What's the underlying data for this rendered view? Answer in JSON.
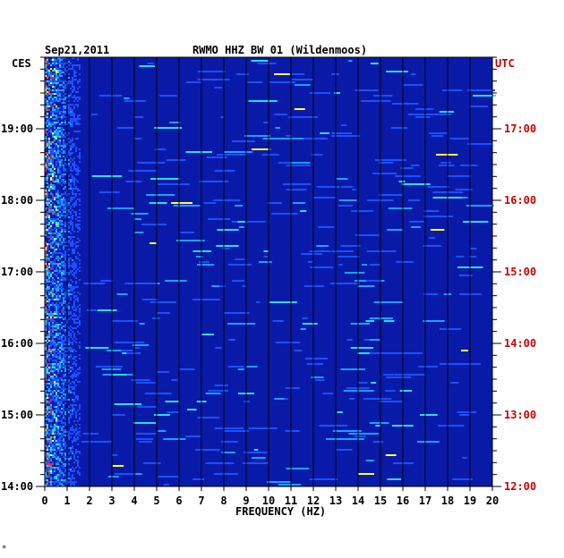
{
  "header": {
    "date": "Sep21,2011",
    "station": "RWMO HHZ BW 01 (Wildenmoos)",
    "left_zone": "CES",
    "right_zone": "UTC"
  },
  "chart_data": {
    "type": "heatmap",
    "title": "RWMO HHZ BW 01 (Wildenmoos)",
    "date": "Sep21,2011",
    "xlabel": "FREQUENCY (HZ)",
    "xlim": [
      0,
      20
    ],
    "x_ticks": [
      "0",
      "1",
      "2",
      "3",
      "4",
      "5",
      "6",
      "7",
      "8",
      "9",
      "10",
      "11",
      "12",
      "13",
      "14",
      "15",
      "16",
      "17",
      "18",
      "19",
      "20"
    ],
    "left_axis_label": "CES",
    "right_axis_label": "UTC",
    "time_range_ces": [
      "14:00",
      "20:00"
    ],
    "left_ticks": [
      "19:00",
      "18:00",
      "17:00",
      "16:00",
      "15:00",
      "14:00"
    ],
    "right_ticks": [
      "17:00",
      "16:00",
      "15:00",
      "14:00",
      "13:00",
      "12:00"
    ],
    "colors": {
      "background": "#0a1aa8",
      "grid": "#000000",
      "left_text": "#000000",
      "right_text": "#cc0000",
      "scale": [
        "#0a1aa8",
        "#1a50ff",
        "#19a0ff",
        "#22e0ff",
        "#ffff40",
        "#ff2020"
      ]
    }
  },
  "footnote": "*"
}
